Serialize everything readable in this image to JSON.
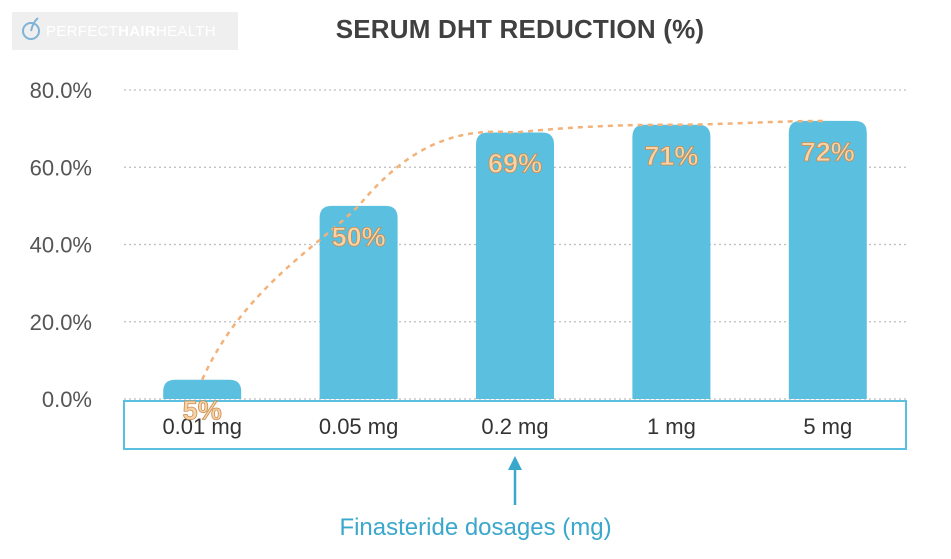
{
  "logo": {
    "text_light": "PERFECT",
    "text_bold": "HAIR",
    "text_end": "HEALTH",
    "icon": "hair-strand-icon"
  },
  "chart_data": {
    "type": "bar",
    "title": "SERUM DHT REDUCTION  (%)",
    "xlabel": "Finasteride dosages (mg)",
    "ylabel": "",
    "categories": [
      "0.01 mg",
      "0.05 mg",
      "0.2 mg",
      "1 mg",
      "5 mg"
    ],
    "values": [
      5,
      50,
      69,
      71,
      72
    ],
    "data_labels": [
      "5%",
      "50%",
      "69%",
      "71%",
      "72%"
    ],
    "ylim": [
      0,
      80
    ],
    "yticks": [
      0,
      20,
      40,
      60,
      80
    ],
    "ytick_labels": [
      "0.0%",
      "20.0%",
      "40.0%",
      "60.0%",
      "80.0%"
    ],
    "grid": true,
    "trendline": "dashed",
    "arrow_at_category": "0.2 mg",
    "colors": {
      "bar": "#5bbfe0",
      "trend": "#f2b27a",
      "axis_box": "#5bbfe0",
      "xlabel": "#3aa7cc"
    }
  }
}
